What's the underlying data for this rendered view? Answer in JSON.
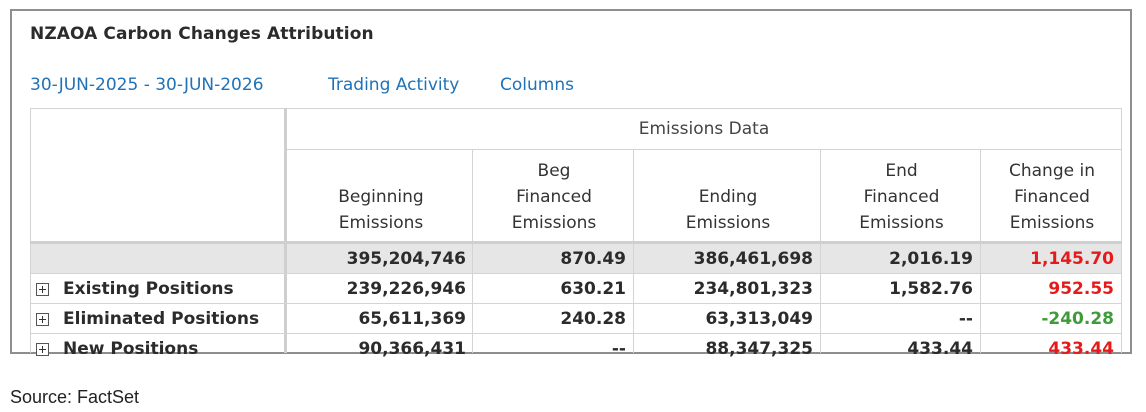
{
  "title": "NZAOA Carbon Changes Attribution",
  "toolbar": {
    "date_range": "30-JUN-2025 - 30-JUN-2026",
    "trading_activity": "Trading Activity",
    "columns": "Columns"
  },
  "table": {
    "group_header": "Emissions Data",
    "columns": [
      "Beginning\nEmissions",
      "Beg\nFinanced\nEmissions",
      "Ending\nEmissions",
      "End\nFinanced\nEmissions",
      "Change in\nFinanced\nEmissions"
    ],
    "totals": [
      "395,204,746",
      "870.49",
      "386,461,698",
      "2,016.19",
      "1,145.70"
    ],
    "rows": [
      {
        "label": "Existing Positions",
        "values": [
          "239,226,946",
          "630.21",
          "234,801,323",
          "1,582.76",
          "952.55"
        ]
      },
      {
        "label": "Eliminated Positions",
        "values": [
          "65,611,369",
          "240.28",
          "63,313,049",
          "--",
          "-240.28"
        ]
      },
      {
        "label": "New Positions",
        "values": [
          "90,366,431",
          "--",
          "88,347,325",
          "433.44",
          "433.44"
        ]
      }
    ]
  },
  "colors": {
    "link": "#1f72b8",
    "positive_change": "#e51b1b",
    "negative_change": "#3e9b3a"
  },
  "footer": {
    "source": "Source: FactSet"
  }
}
